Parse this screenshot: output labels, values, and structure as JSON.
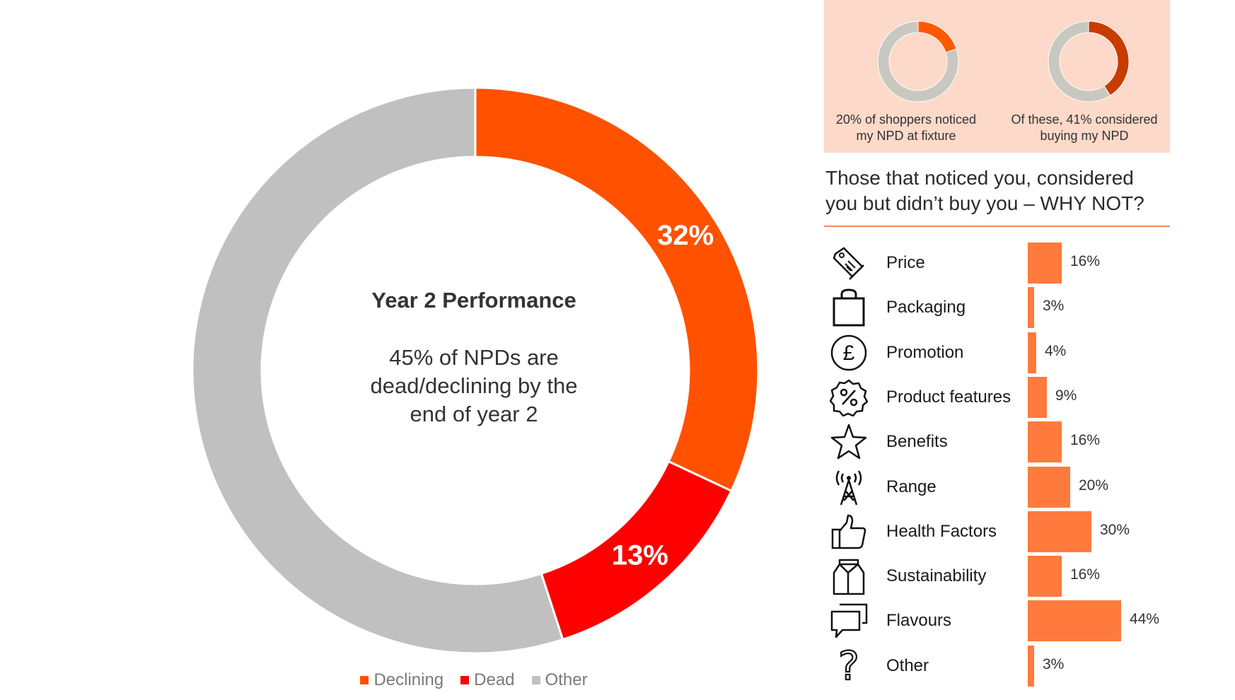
{
  "chart_data": [
    {
      "type": "pie",
      "title": "Year 2 Performance",
      "subtitle": "45% of NPDs are\ndead/declining  by the\nend of year 2",
      "categories": [
        "Declining",
        "Dead",
        "Other"
      ],
      "values": [
        32,
        13,
        55
      ],
      "data_labels": [
        "32%",
        "13%",
        ""
      ],
      "colors": [
        "#ff5100",
        "#ff0000",
        "#c0c0c0"
      ],
      "legend": {
        "position": "bottom",
        "entries": [
          "Declining",
          "Dead",
          "Other"
        ]
      }
    },
    {
      "type": "pie",
      "categories": [
        "Noticed",
        "Not noticed"
      ],
      "values": [
        20,
        80
      ],
      "colors": [
        "#ff5a00",
        "#c8c8c0"
      ],
      "caption": "20% of shoppers noticed\nmy NPD at fixture"
    },
    {
      "type": "pie",
      "categories": [
        "Considered",
        "Not considered"
      ],
      "values": [
        41,
        59
      ],
      "colors": [
        "#c83c00",
        "#c8c8c0"
      ],
      "caption": "Of these, 41% considered\nbuying my NPD"
    },
    {
      "type": "bar",
      "orientation": "horizontal",
      "title": "Those that noticed you, considered\nyou but didn’t buy you – WHY NOT?",
      "categories": [
        "Price",
        "Packaging",
        "Promotion",
        "Product features",
        "Benefits",
        "Range",
        "Health Factors",
        "Sustainability",
        "Flavours",
        "Other"
      ],
      "values": [
        16,
        3,
        4,
        9,
        16,
        20,
        30,
        16,
        44,
        3
      ],
      "data_labels": [
        "16%",
        "3%",
        "4%",
        "9%",
        "16%",
        "20%",
        "30%",
        "16%",
        "44%",
        "3%"
      ],
      "icons": [
        "price-tag-icon",
        "shopping-bag-icon",
        "pound-coin-icon",
        "percent-badge-icon",
        "star-icon",
        "signal-tower-icon",
        "thumbs-up-icon",
        "milk-carton-icon",
        "speech-bubbles-icon",
        "question-mark-icon"
      ],
      "bar_color": "#ff7a3d"
    }
  ]
}
